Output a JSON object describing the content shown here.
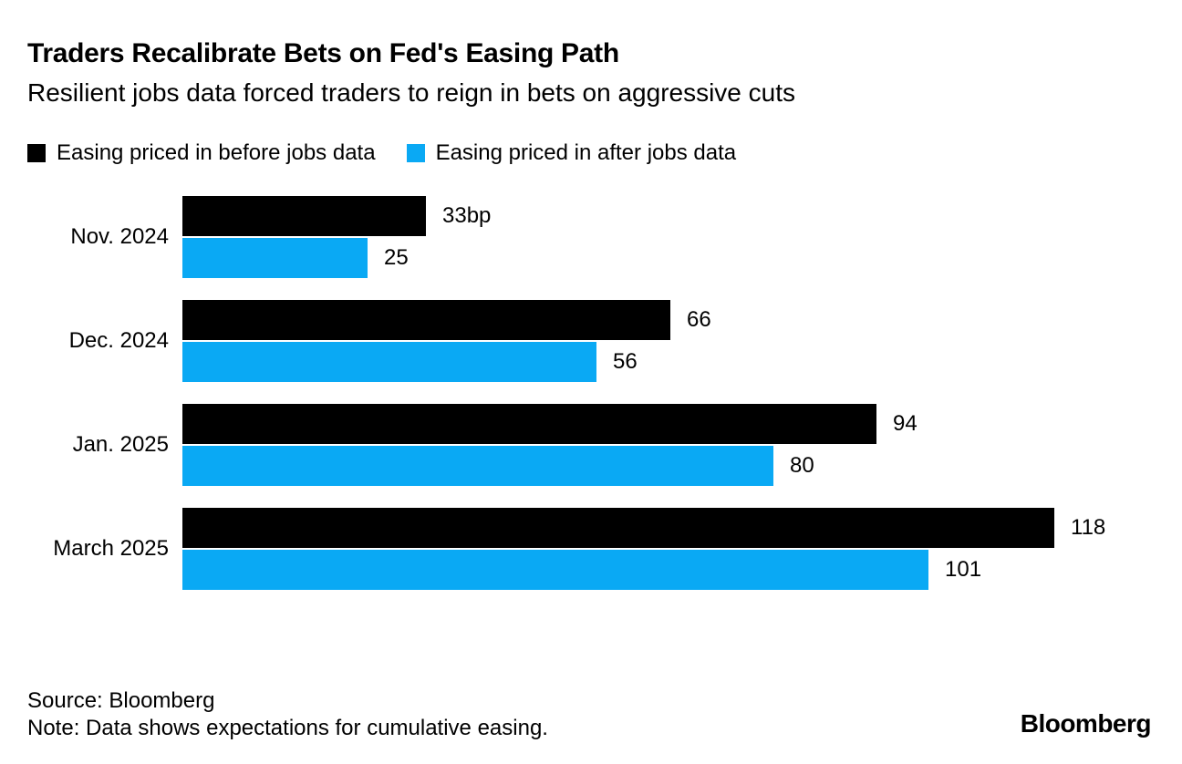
{
  "header": {
    "title": "Traders Recalibrate Bets on Fed's Easing Path",
    "subtitle": "Resilient jobs data forced traders to reign in bets on aggressive cuts"
  },
  "legend": [
    {
      "label": "Easing priced in before jobs data",
      "color": "#000000"
    },
    {
      "label": "Easing priced in after jobs data",
      "color": "#0AA9F4"
    }
  ],
  "chart_data": {
    "type": "bar",
    "orientation": "horizontal",
    "title": "Traders Recalibrate Bets on Fed's Easing Path",
    "subtitle": "Resilient jobs data forced traders to reign in bets on aggressive cuts",
    "unit": "bp",
    "xlim": [
      0,
      131
    ],
    "grid": false,
    "legend_position": "top",
    "categories": [
      "Nov. 2024",
      "Dec. 2024",
      "Jan. 2025",
      "March 2025"
    ],
    "series": [
      {
        "name": "Easing priced in before jobs data",
        "color": "#000000",
        "values": [
          33,
          66,
          94,
          118
        ],
        "labels": [
          "33bp",
          "66",
          "94",
          "118"
        ]
      },
      {
        "name": "Easing priced in after jobs data",
        "color": "#0AA9F4",
        "values": [
          25,
          56,
          80,
          101
        ],
        "labels": [
          "25",
          "56",
          "80",
          "101"
        ]
      }
    ]
  },
  "footer": {
    "source": "Source: Bloomberg",
    "note": "Note: Data shows expectations for cumulative easing.",
    "logo": "Bloomberg"
  }
}
